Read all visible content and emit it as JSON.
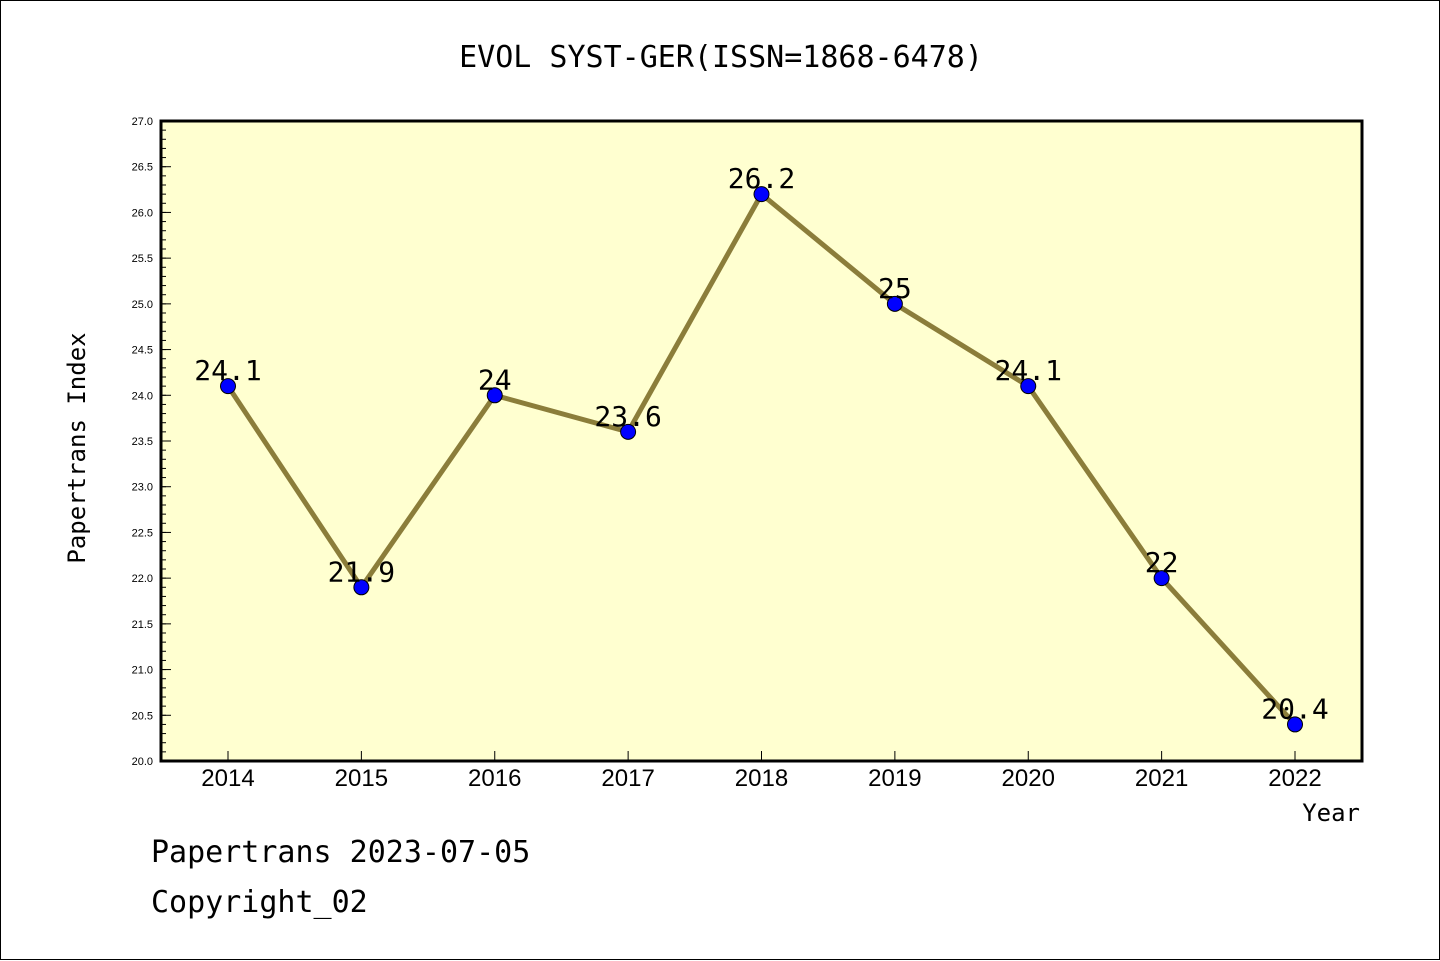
{
  "chart_data": {
    "type": "line",
    "title": "EVOL SYST-GER(ISSN=1868-6478)",
    "xlabel": "Year",
    "ylabel": "Papertrans Index",
    "categories": [
      "2014",
      "2015",
      "2016",
      "2017",
      "2018",
      "2019",
      "2020",
      "2021",
      "2022"
    ],
    "series": [
      {
        "values": [
          24.1,
          21.9,
          24.0,
          23.6,
          26.2,
          25.0,
          24.1,
          22.0,
          20.4
        ],
        "labels": [
          "24.1",
          "21.9",
          "24",
          "23.6",
          "26.2",
          "25",
          "24.1",
          "22",
          "20.4"
        ]
      }
    ],
    "ylim": [
      20.0,
      27.0
    ],
    "yticks": [
      "20.0",
      "20.5",
      "21.0",
      "21.5",
      "22.0",
      "22.5",
      "23.0",
      "23.5",
      "24.0",
      "24.5",
      "25.0",
      "25.5",
      "26.0",
      "26.5",
      "27.0"
    ],
    "grid": false,
    "colors": {
      "plot_background": "#FFFFD0",
      "line": "#8B7D3A",
      "marker": "#0000FF"
    }
  },
  "footer": {
    "line1": "Papertrans 2023-07-05",
    "line2": "Copyright_02"
  }
}
